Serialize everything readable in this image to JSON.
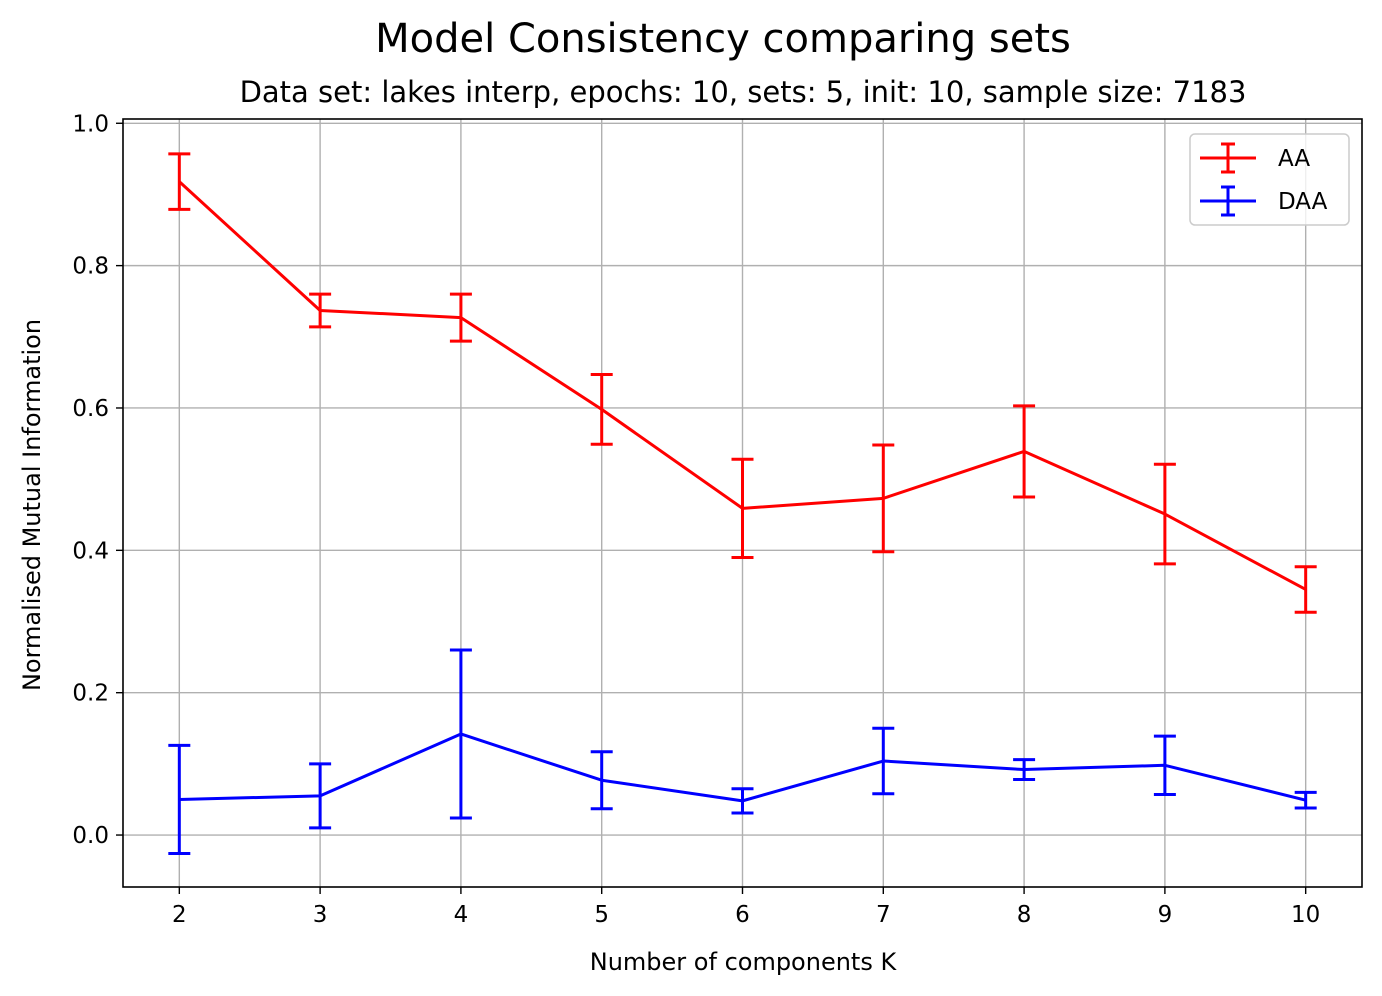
{
  "chart_data": {
    "type": "line",
    "title": "Model Consistency comparing sets",
    "subtitle": "Data set:  lakes interp, epochs: 10, sets: 5, init: 10, sample size: 7183",
    "xlabel": "Number of components K",
    "ylabel": "Normalised Mutual Information",
    "x": [
      2,
      3,
      4,
      5,
      6,
      7,
      8,
      9,
      10
    ],
    "xticks": [
      "2",
      "3",
      "4",
      "5",
      "6",
      "7",
      "8",
      "9",
      "10"
    ],
    "yticks": [
      "0.0",
      "0.2",
      "0.4",
      "0.6",
      "0.8",
      "1.0"
    ],
    "xlim": [
      1.6,
      10.4
    ],
    "ylim": [
      -0.073,
      1.006
    ],
    "grid": true,
    "legend_position": "top-right",
    "series": [
      {
        "name": "AA",
        "color": "#ff0000",
        "values": [
          0.918,
          0.737,
          0.727,
          0.598,
          0.459,
          0.473,
          0.539,
          0.451,
          0.345
        ],
        "errors": [
          0.039,
          0.023,
          0.033,
          0.049,
          0.069,
          0.075,
          0.064,
          0.07,
          0.032
        ]
      },
      {
        "name": "DAA",
        "color": "#0000ff",
        "values": [
          0.05,
          0.055,
          0.142,
          0.077,
          0.048,
          0.104,
          0.092,
          0.098,
          0.049
        ],
        "errors": [
          0.076,
          0.045,
          0.118,
          0.04,
          0.017,
          0.046,
          0.014,
          0.041,
          0.011
        ]
      }
    ]
  }
}
